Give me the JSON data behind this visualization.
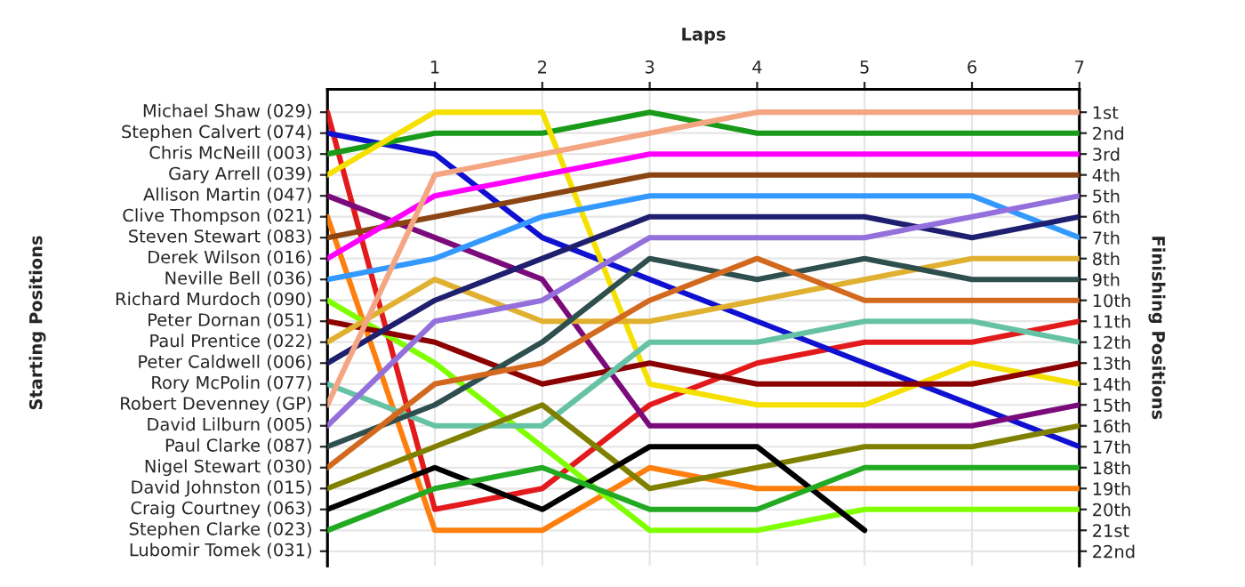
{
  "chart_data": {
    "type": "line",
    "xlabel": "Laps",
    "y2label": "Finishing Positions",
    "x": [
      0,
      1,
      2,
      3,
      4,
      5,
      6,
      7
    ],
    "xlim": [
      0,
      7
    ],
    "xticks": [
      1,
      2,
      3,
      4,
      5,
      6,
      7
    ],
    "y2lim": [
      22.7,
      -0.1
    ],
    "grid": true,
    "y2ticks": [
      {
        "value": 1,
        "label": "1st"
      },
      {
        "value": 2,
        "label": "2nd"
      },
      {
        "value": 3,
        "label": "3rd"
      },
      {
        "value": 4,
        "label": "4th"
      },
      {
        "value": 5,
        "label": "5th"
      },
      {
        "value": 6,
        "label": "6th"
      },
      {
        "value": 7,
        "label": "7th"
      },
      {
        "value": 8,
        "label": "8th"
      },
      {
        "value": 9,
        "label": "9th"
      },
      {
        "value": 10,
        "label": "10th"
      },
      {
        "value": 11,
        "label": "11th"
      },
      {
        "value": 12,
        "label": "12th"
      },
      {
        "value": 13,
        "label": "13th"
      },
      {
        "value": 14,
        "label": "14th"
      },
      {
        "value": 15,
        "label": "15th"
      },
      {
        "value": 16,
        "label": "16th"
      },
      {
        "value": 17,
        "label": "17th"
      },
      {
        "value": 18,
        "label": "18th"
      },
      {
        "value": 19,
        "label": "19th"
      },
      {
        "value": 20,
        "label": "20th"
      },
      {
        "value": 21,
        "label": "21st"
      },
      {
        "value": 22,
        "label": "22nd"
      }
    ],
    "annotations": [
      "Starting Positions",
      "Lubomir Tomek (031)"
    ],
    "series": [
      {
        "name": "Michael Shaw (029)",
        "axis": "y2",
        "color": "#e31a1c",
        "values": [
          1,
          20,
          19,
          15,
          13,
          12,
          12,
          11
        ]
      },
      {
        "name": "Stephen Calvert (074)",
        "axis": "y2",
        "color": "#1010d0",
        "values": [
          2,
          3,
          7,
          9,
          11,
          13,
          15,
          17
        ]
      },
      {
        "name": "Chris McNeill (003)",
        "axis": "y2",
        "color": "#1a9a1a",
        "values": [
          3,
          2,
          2,
          1,
          2,
          2,
          2,
          2
        ]
      },
      {
        "name": "Gary Arrell (039)",
        "axis": "y2",
        "color": "#f5e000",
        "values": [
          4,
          1,
          1,
          14,
          15,
          15,
          13,
          14
        ]
      },
      {
        "name": "Allison Martin (047)",
        "axis": "y2",
        "color": "#7b0a7b",
        "values": [
          5,
          7,
          9,
          16,
          16,
          16,
          16,
          15
        ]
      },
      {
        "name": "Clive Thompson (021)",
        "axis": "y2",
        "color": "#ff7f0e",
        "values": [
          6,
          21,
          21,
          18,
          19,
          19,
          19,
          19
        ]
      },
      {
        "name": "Steven Stewart (083)",
        "axis": "y2",
        "color": "#8b4513",
        "values": [
          7,
          6,
          5,
          4,
          4,
          4,
          4,
          4
        ]
      },
      {
        "name": "Derek Wilson (016)",
        "axis": "y2",
        "color": "#ff00ff",
        "values": [
          8,
          5,
          4,
          3,
          3,
          3,
          3,
          3
        ]
      },
      {
        "name": "Neville Bell (036)",
        "axis": "y2",
        "color": "#3399ff",
        "values": [
          9,
          8,
          6,
          5,
          5,
          5,
          5,
          7
        ]
      },
      {
        "name": "Richard Murdoch (090)",
        "axis": "y2",
        "color": "#80ff00",
        "values": [
          10,
          13,
          17,
          21,
          21,
          20,
          20,
          20
        ]
      },
      {
        "name": "Peter Dornan (051)",
        "axis": "y2",
        "color": "#8b0000",
        "values": [
          11,
          12,
          14,
          13,
          14,
          14,
          14,
          13
        ]
      },
      {
        "name": "Paul Prentice (022)",
        "axis": "y2",
        "color": "#e0b030",
        "values": [
          12,
          9,
          11,
          11,
          10,
          9,
          8,
          8
        ]
      },
      {
        "name": "Peter Caldwell (006)",
        "axis": "y2",
        "color": "#1f1f6f",
        "values": [
          13,
          10,
          8,
          6,
          6,
          6,
          7,
          6
        ]
      },
      {
        "name": "Rory McPolin (077)",
        "axis": "y2",
        "color": "#66c2a5",
        "values": [
          14,
          16,
          16,
          12,
          12,
          11,
          11,
          12
        ]
      },
      {
        "name": "Robert Devenney (GP)",
        "axis": "y2",
        "color": "#f4a582",
        "values": [
          15,
          4,
          3,
          2,
          1,
          1,
          1,
          1
        ]
      },
      {
        "name": "David Lilburn (005)",
        "axis": "y2",
        "color": "#9370db",
        "values": [
          16,
          11,
          10,
          7,
          7,
          7,
          6,
          5
        ]
      },
      {
        "name": "Paul Clarke (087)",
        "axis": "y2",
        "color": "#2f4f4f",
        "values": [
          17,
          15,
          12,
          8,
          9,
          8,
          9,
          9
        ]
      },
      {
        "name": "Nigel Stewart (030)",
        "axis": "y2",
        "color": "#d2691e",
        "values": [
          18,
          14,
          13,
          10,
          8,
          10,
          10,
          10
        ]
      },
      {
        "name": "David Johnston (015)",
        "axis": "y2",
        "color": "#808000",
        "values": [
          19,
          17,
          15,
          19,
          18,
          17,
          17,
          16
        ]
      },
      {
        "name": "Craig Courtney (063)",
        "axis": "y2",
        "color": "#000000",
        "values": [
          20,
          18,
          20,
          17,
          17,
          21,
          null,
          null
        ]
      },
      {
        "name": "Stephen Clarke (023)",
        "axis": "y2",
        "color": "#22aa22",
        "values": [
          21,
          19,
          18,
          20,
          20,
          18,
          18,
          18
        ]
      }
    ]
  }
}
